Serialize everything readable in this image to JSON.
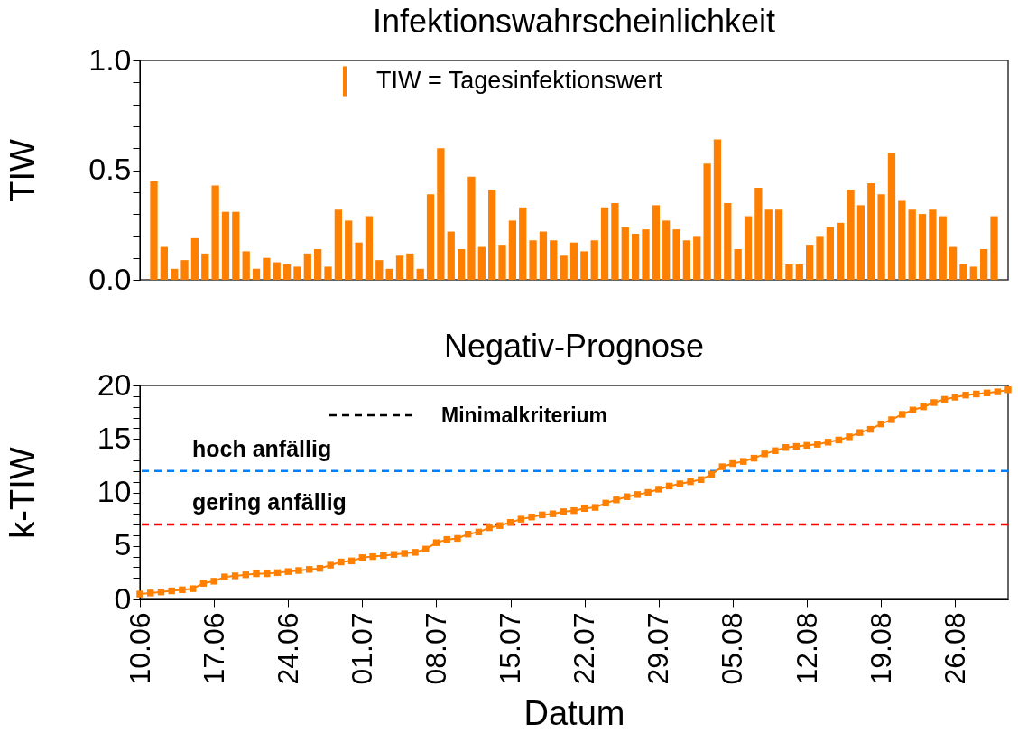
{
  "chart_data": [
    {
      "type": "bar",
      "title": "Infektionswahrscheinlichkeit",
      "ylabel": "TIW",
      "legend": "top",
      "tick_labels": "y",
      "categories": [
        null,
        null,
        null,
        null,
        null,
        null,
        null,
        null,
        null,
        null,
        null,
        null,
        null,
        null,
        null,
        null,
        null,
        null,
        null,
        null,
        null,
        null,
        null,
        null,
        null,
        null,
        null,
        null,
        null,
        null,
        null,
        null,
        null,
        null,
        null,
        null,
        null,
        null,
        null,
        null,
        null,
        null,
        null,
        null,
        null,
        null,
        null,
        null,
        null,
        null,
        null,
        null,
        null,
        null,
        null,
        null,
        null,
        null,
        null,
        null,
        null,
        null,
        null,
        null,
        null,
        null,
        null,
        null,
        null,
        null,
        null,
        null,
        null,
        null,
        null,
        null,
        null,
        null,
        null,
        null,
        null,
        null,
        null
      ],
      "series": [
        {
          "name": "TIW = Tagesinfektionswert",
          "color": "#ff8000",
          "values": [
            0.45,
            0.15,
            0.05,
            0.09,
            0.19,
            0.12,
            0.43,
            0.31,
            0.31,
            0.13,
            0.05,
            0.1,
            0.08,
            0.07,
            0.06,
            0.12,
            0.14,
            0.06,
            0.32,
            0.27,
            0.17,
            0.29,
            0.09,
            0.05,
            0.11,
            0.12,
            0.05,
            0.39,
            0.6,
            0.22,
            0.14,
            0.47,
            0.15,
            0.41,
            0.16,
            0.27,
            0.33,
            0.18,
            0.22,
            0.18,
            0.11,
            0.17,
            0.13,
            0.18,
            0.33,
            0.35,
            0.24,
            0.21,
            0.23,
            0.34,
            0.27,
            0.23,
            0.18,
            0.2,
            0.53,
            0.64,
            0.35,
            0.14,
            0.29,
            0.42,
            0.32,
            0.32,
            0.07,
            0.07,
            0.16,
            0.2,
            0.24,
            0.26,
            0.41,
            0.34,
            0.44,
            0.39,
            0.58,
            0.36,
            0.32,
            0.3,
            0.32,
            0.29,
            0.15,
            0.07,
            0.06,
            0.14,
            0.29
          ]
        }
      ],
      "ylim": [
        0,
        1
      ],
      "yticks": [
        {
          "value": 0,
          "label": "0.0"
        },
        {
          "value": 0.1,
          "label": null
        },
        {
          "value": 0.2,
          "label": null
        },
        {
          "value": 0.3,
          "label": null
        },
        {
          "value": 0.4,
          "label": null
        },
        {
          "value": 0.5,
          "label": "0.5"
        },
        {
          "value": 0.6,
          "label": null
        },
        {
          "value": 0.7,
          "label": null
        },
        {
          "value": 0.8,
          "label": null
        },
        {
          "value": 0.9,
          "label": null
        },
        {
          "value": 1,
          "label": "1.0"
        }
      ]
    },
    {
      "type": "line",
      "title": "Negativ-Prognose",
      "xlabel": "Datum",
      "ylabel": "k-TIW",
      "marker": "square",
      "line_style": "solid",
      "annotations": [
        "Minimalkriterium"
      ],
      "x": [
        "--06-10",
        "--06-11",
        "--06-12",
        "--06-13",
        "--06-14",
        "--06-15",
        "--06-16",
        "--06-17",
        "--06-18",
        "--06-19",
        "--06-20",
        "--06-21",
        "--06-22",
        "--06-23",
        "--06-24",
        "--06-25",
        "--06-26",
        "--06-27",
        "--06-28",
        "--06-29",
        "--06-30",
        "--07-01",
        "--07-02",
        "--07-03",
        "--07-04",
        "--07-05",
        "--07-06",
        "--07-07",
        "--07-08",
        "--07-09",
        "--07-10",
        "--07-11",
        "--07-12",
        "--07-13",
        "--07-14",
        "--07-15",
        "--07-16",
        "--07-17",
        "--07-18",
        "--07-19",
        "--07-20",
        "--07-21",
        "--07-22",
        "--07-23",
        "--07-24",
        "--07-25",
        "--07-26",
        "--07-27",
        "--07-28",
        "--07-29",
        "--07-30",
        "--07-31",
        "--08-01",
        "--08-02",
        "--08-03",
        "--08-04",
        "--08-05",
        "--08-06",
        "--08-07",
        "--08-08",
        "--08-09",
        "--08-10",
        "--08-11",
        "--08-12",
        "--08-13",
        "--08-14",
        "--08-15",
        "--08-16",
        "--08-17",
        "--08-18",
        "--08-19",
        "--08-20",
        "--08-21",
        "--08-22",
        "--08-23",
        "--08-24",
        "--08-25",
        "--08-26",
        "--08-27",
        "--08-28",
        "--08-29",
        "--08-30",
        "--08-31"
      ],
      "series": [
        {
          "color": "#ff7f00",
          "values": [
            0.5,
            0.6,
            0.7,
            0.8,
            0.9,
            1.0,
            1.5,
            1.7,
            2.1,
            2.2,
            2.3,
            2.4,
            2.4,
            2.5,
            2.6,
            2.7,
            2.8,
            2.9,
            3.2,
            3.5,
            3.6,
            3.9,
            4.0,
            4.1,
            4.2,
            4.3,
            4.4,
            4.7,
            5.3,
            5.6,
            5.7,
            6.1,
            6.3,
            6.7,
            6.9,
            7.2,
            7.5,
            7.7,
            7.9,
            8.0,
            8.2,
            8.3,
            8.5,
            8.6,
            9.0,
            9.3,
            9.6,
            9.8,
            10.0,
            10.3,
            10.6,
            10.8,
            11.0,
            11.2,
            11.7,
            12.4,
            12.7,
            12.9,
            13.2,
            13.6,
            13.9,
            14.2,
            14.3,
            14.4,
            14.5,
            14.7,
            14.9,
            15.2,
            15.6,
            15.9,
            16.4,
            16.8,
            17.3,
            17.7,
            18.0,
            18.4,
            18.7,
            18.9,
            19.1,
            19.2,
            19.3,
            19.4,
            19.6
          ]
        }
      ],
      "xlim": [
        "--06-10",
        "--08-31"
      ],
      "xticks": [
        {
          "value": "--06-10",
          "label": "10.06"
        },
        {
          "value": "--06-17",
          "label": "17.06"
        },
        {
          "value": "--06-24",
          "label": "24.06"
        },
        {
          "value": "--07-01",
          "label": "01.07"
        },
        {
          "value": "--07-08",
          "label": "08.07"
        },
        {
          "value": "--07-15",
          "label": "15.07"
        },
        {
          "value": "--07-22",
          "label": "22.07"
        },
        {
          "value": "--07-29",
          "label": "29.07"
        },
        {
          "value": "--08-05",
          "label": "05.08"
        },
        {
          "value": "--08-12",
          "label": "12.08"
        },
        {
          "value": "--08-19",
          "label": "19.08"
        },
        {
          "value": "--08-26",
          "label": "26.08"
        }
      ],
      "ylim": [
        0,
        20
      ],
      "yticks": [
        0,
        {
          "value": 1,
          "label": null
        },
        {
          "value": 2,
          "label": null
        },
        {
          "value": 3,
          "label": null
        },
        {
          "value": 4,
          "label": null
        },
        5,
        {
          "value": 6,
          "label": null
        },
        {
          "value": 7,
          "label": null
        },
        {
          "value": 8,
          "label": null
        },
        {
          "value": 9,
          "label": null
        },
        10,
        {
          "value": 11,
          "label": null
        },
        {
          "value": 12,
          "label": null
        },
        {
          "value": 13,
          "label": null
        },
        {
          "value": 14,
          "label": null
        },
        15,
        {
          "value": 16,
          "label": null
        },
        {
          "value": 17,
          "label": null
        },
        {
          "value": 18,
          "label": null
        },
        {
          "value": 19,
          "label": null
        },
        20
      ],
      "ref_lines": [
        {
          "axis": "y",
          "value": 12,
          "label": "hoch anfällig",
          "color": "#0080ff",
          "line_style": "dashed"
        },
        {
          "axis": "y",
          "value": 7,
          "label": "gering anfällig",
          "color": "#ff0000",
          "line_style": "dashed"
        }
      ]
    }
  ]
}
